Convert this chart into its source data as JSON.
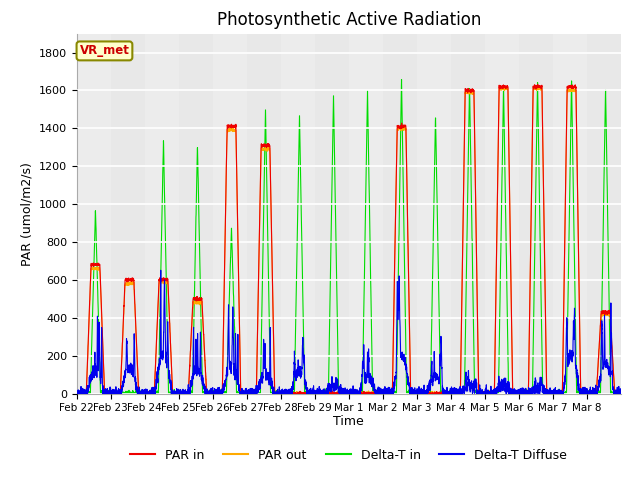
{
  "title": "Photosynthetic Active Radiation",
  "ylabel": "PAR (umol/m2/s)",
  "xlabel": "Time",
  "annotation": "VR_met",
  "ylim": [
    0,
    1900
  ],
  "yticks": [
    0,
    200,
    400,
    600,
    800,
    1000,
    1200,
    1400,
    1600,
    1800
  ],
  "x_tick_labels": [
    "Feb 22",
    "Feb 23",
    "Feb 24",
    "Feb 25",
    "Feb 26",
    "Feb 27",
    "Feb 28",
    "Feb 29",
    "Mar 1",
    "Mar 2",
    "Mar 3",
    "Mar 4",
    "Mar 5",
    "Mar 6",
    "Mar 7",
    "Mar 8"
  ],
  "colors": {
    "par_in": "#ee0000",
    "par_out": "#ffaa00",
    "delta_t_in": "#00dd00",
    "delta_t_diffuse": "#0000ee"
  },
  "legend_labels": [
    "PAR in",
    "PAR out",
    "Delta-T in",
    "Delta-T Diffuse"
  ],
  "bg_color": "#e8e8e8",
  "bg_color2": "#d0d0d0",
  "grid_color": "#ffffff",
  "title_fontsize": 12,
  "annotation_color": "#cc0000",
  "annotation_bg": "#ffffcc",
  "annotation_edge": "#888800"
}
